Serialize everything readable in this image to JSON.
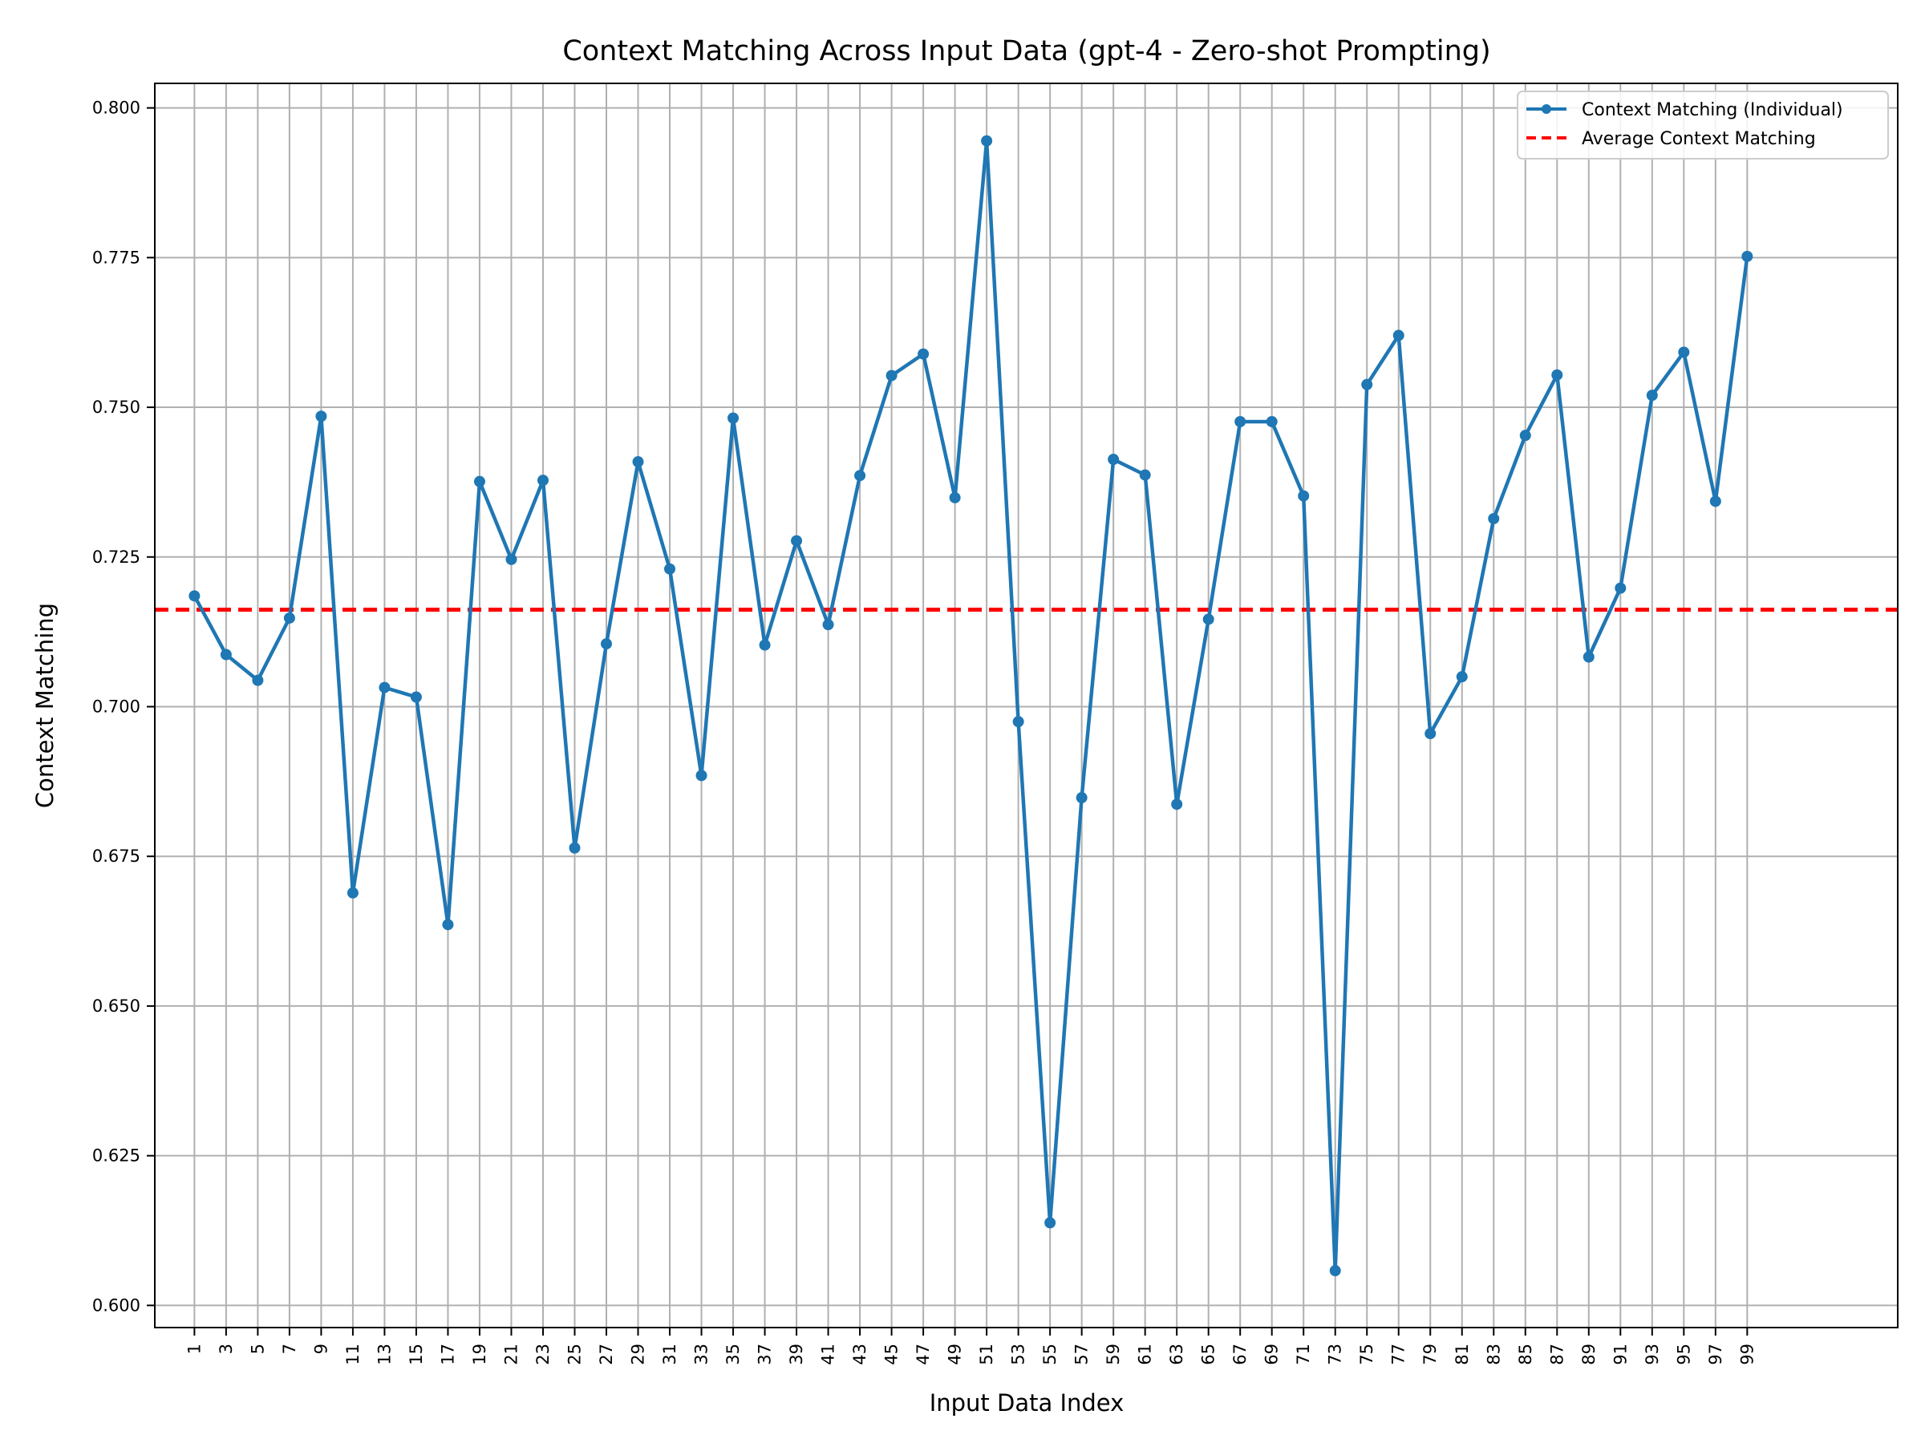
{
  "chart_data": {
    "type": "line",
    "title": "Context Matching Across Input Data (gpt-4 - Zero-shot Prompting)",
    "xlabel": "Input Data Index",
    "ylabel": "Context Matching",
    "xlim": [
      -1.5,
      108.5
    ],
    "ylim": [
      0.5963,
      0.8041
    ],
    "x_ticks": [
      "1",
      "3",
      "5",
      "7",
      "9",
      "11",
      "13",
      "15",
      "17",
      "19",
      "21",
      "23",
      "25",
      "27",
      "29",
      "31",
      "33",
      "35",
      "37",
      "39",
      "41",
      "43",
      "45",
      "47",
      "49",
      "51",
      "53",
      "55",
      "57",
      "59",
      "61",
      "63",
      "65",
      "67",
      "69",
      "71",
      "73",
      "75",
      "77",
      "79",
      "81",
      "83",
      "85",
      "87",
      "89",
      "91",
      "93",
      "95",
      "97",
      "99"
    ],
    "y_ticks": [
      "0.600",
      "0.625",
      "0.650",
      "0.675",
      "0.700",
      "0.725",
      "0.750",
      "0.775",
      "0.800"
    ],
    "grid": true,
    "legend_position": "top-right",
    "series": [
      {
        "name": "Context Matching (Individual)",
        "color": "#1f77b4",
        "style": "line-marker",
        "x": [
          1,
          3,
          5,
          7,
          9,
          11,
          13,
          15,
          17,
          19,
          21,
          23,
          25,
          27,
          29,
          31,
          33,
          35,
          37,
          39,
          41,
          43,
          45,
          47,
          49,
          51,
          53,
          55,
          57,
          59,
          61,
          63,
          65,
          67,
          69,
          71,
          73,
          75,
          77,
          79,
          81,
          83,
          85,
          87,
          89,
          91,
          93,
          95,
          97,
          99
        ],
        "values": [
          0.7185,
          0.7087,
          0.7044,
          0.7148,
          0.7485,
          0.6689,
          0.7032,
          0.7016,
          0.6636,
          0.7376,
          0.7246,
          0.7378,
          0.6764,
          0.7105,
          0.7409,
          0.723,
          0.6885,
          0.7482,
          0.7103,
          0.7277,
          0.7137,
          0.7386,
          0.7553,
          0.7589,
          0.7349,
          0.7945,
          0.6975,
          0.6138,
          0.6848,
          0.7413,
          0.7387,
          0.6837,
          0.7146,
          0.7476,
          0.7476,
          0.7352,
          0.6058,
          0.7538,
          0.762,
          0.6955,
          0.705,
          0.7314,
          0.7453,
          0.7554,
          0.7083,
          0.7198,
          0.752,
          0.7592,
          0.7343,
          0.7752
        ]
      },
      {
        "name": "Average Context Matching",
        "color": "#ff0000",
        "style": "dashed",
        "value": 0.7162
      }
    ]
  }
}
